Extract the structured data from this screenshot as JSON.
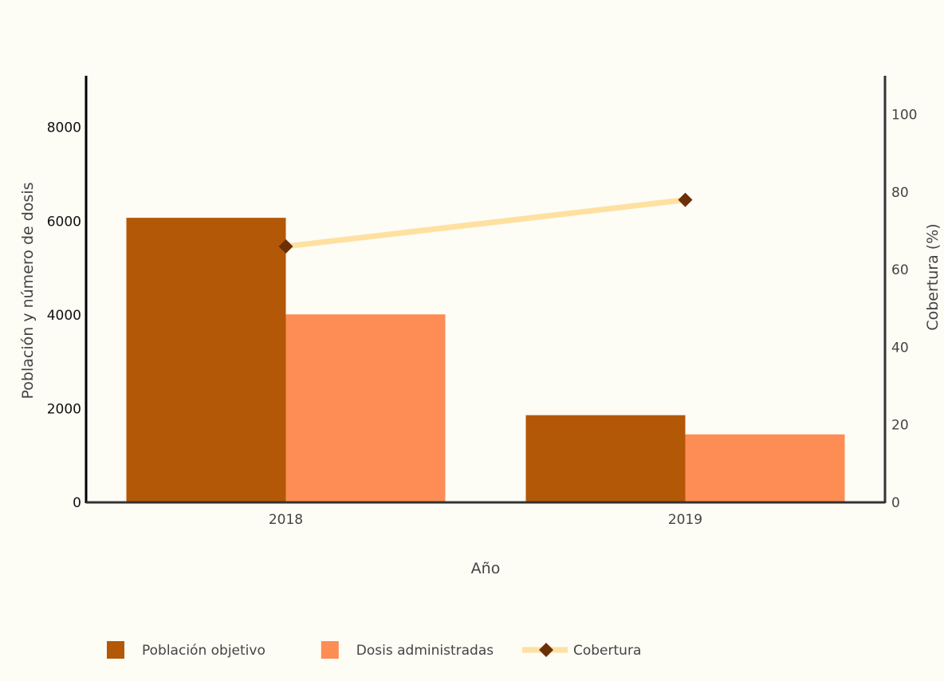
{
  "chart_data": {
    "type": "bar",
    "categories": [
      "2018",
      "2019"
    ],
    "series": [
      {
        "name": "Población objetivo",
        "type": "bar",
        "axis": "left",
        "values": [
          6070,
          1860
        ]
      },
      {
        "name": "Dosis administradas",
        "type": "bar",
        "axis": "left",
        "values": [
          4010,
          1450
        ]
      },
      {
        "name": "Cobertura",
        "type": "line",
        "axis": "right",
        "marker": "diamond",
        "values": [
          66,
          78
        ]
      }
    ],
    "title": "",
    "xlabel": "Año",
    "ylabel": "Población y número de dosis",
    "y2label": "Cobertura (%)",
    "ylim": [
      0,
      9100
    ],
    "y2lim": [
      0,
      110
    ],
    "yticks": [
      "0",
      "2000",
      "4000",
      "6000",
      "8000"
    ],
    "y2ticks": [
      "0",
      "20",
      "40",
      "60",
      "80",
      "100"
    ],
    "grid": false,
    "legend_position": "bottom-left",
    "colors": {
      "Población objetivo": "#b35806",
      "Dosis administradas": "#fd8d55",
      "Cobertura_line": "#fee0a0",
      "Cobertura_marker": "#6b3008",
      "background": "#fdfcf5",
      "axis": "#333333"
    }
  }
}
